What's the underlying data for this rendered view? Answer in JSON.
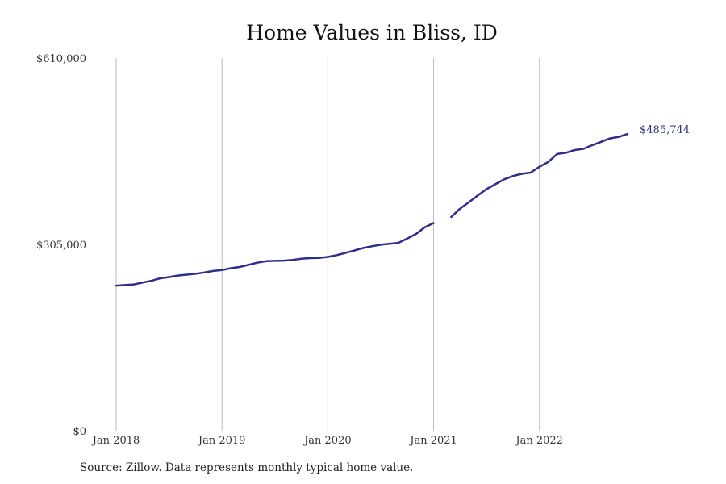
{
  "chart_data": {
    "type": "line",
    "title": "Home Values in Bliss, ID",
    "xlabel": "",
    "ylabel": "",
    "ylim": [
      0,
      610000
    ],
    "y_ticks": [
      {
        "value": 0,
        "label": "$0"
      },
      {
        "value": 305000,
        "label": "$305,000"
      },
      {
        "value": 610000,
        "label": "$610,000"
      }
    ],
    "x_range": [
      "2018-01",
      "2022-10"
    ],
    "x_ticks": [
      {
        "date": "2018-01",
        "label": "Jan 2018"
      },
      {
        "date": "2019-01",
        "label": "Jan 2019"
      },
      {
        "date": "2020-01",
        "label": "Jan 2020"
      },
      {
        "date": "2021-01",
        "label": "Jan 2021"
      },
      {
        "date": "2022-01",
        "label": "Jan 2022"
      }
    ],
    "grid": "vertical",
    "series": [
      {
        "color": "#2e2e8c",
        "end_label": "$485,744",
        "points": [
          {
            "x": "2018-01",
            "y": 237500
          },
          {
            "x": "2018-02",
            "y": 238500
          },
          {
            "x": "2018-03",
            "y": 239500
          },
          {
            "x": "2018-04",
            "y": 242500
          },
          {
            "x": "2018-05",
            "y": 245500
          },
          {
            "x": "2018-06",
            "y": 249500
          },
          {
            "x": "2018-07",
            "y": 251500
          },
          {
            "x": "2018-08",
            "y": 254000
          },
          {
            "x": "2018-09",
            "y": 255500
          },
          {
            "x": "2018-10",
            "y": 257000
          },
          {
            "x": "2018-11",
            "y": 259000
          },
          {
            "x": "2018-12",
            "y": 261500
          },
          {
            "x": "2019-01",
            "y": 263000
          },
          {
            "x": "2019-02",
            "y": 266000
          },
          {
            "x": "2019-03",
            "y": 268000
          },
          {
            "x": "2019-04",
            "y": 271500
          },
          {
            "x": "2019-05",
            "y": 275000
          },
          {
            "x": "2019-06",
            "y": 277500
          },
          {
            "x": "2019-07",
            "y": 278000
          },
          {
            "x": "2019-08",
            "y": 278500
          },
          {
            "x": "2019-09",
            "y": 279500
          },
          {
            "x": "2019-10",
            "y": 281500
          },
          {
            "x": "2019-11",
            "y": 282500
          },
          {
            "x": "2019-12",
            "y": 283000
          },
          {
            "x": "2020-01",
            "y": 284500
          },
          {
            "x": "2020-02",
            "y": 287500
          },
          {
            "x": "2020-03",
            "y": 291000
          },
          {
            "x": "2020-04",
            "y": 295000
          },
          {
            "x": "2020-05",
            "y": 299000
          },
          {
            "x": "2020-06",
            "y": 302000
          },
          {
            "x": "2020-07",
            "y": 304500
          },
          {
            "x": "2020-08",
            "y": 306000
          },
          {
            "x": "2020-09",
            "y": 307500
          },
          {
            "x": "2020-10",
            "y": 314500
          },
          {
            "x": "2020-11",
            "y": 322000
          },
          {
            "x": "2020-12",
            "y": 333000
          },
          {
            "x": "2021-01",
            "y": 340000
          },
          {
            "x": "2021-02",
            "y": null
          },
          {
            "x": "2021-03",
            "y": 350000
          },
          {
            "x": "2021-04",
            "y": 363500
          },
          {
            "x": "2021-05",
            "y": 374000
          },
          {
            "x": "2021-06",
            "y": 385000
          },
          {
            "x": "2021-07",
            "y": 395500
          },
          {
            "x": "2021-08",
            "y": 403500
          },
          {
            "x": "2021-09",
            "y": 411500
          },
          {
            "x": "2021-10",
            "y": 417000
          },
          {
            "x": "2021-11",
            "y": 420500
          },
          {
            "x": "2021-12",
            "y": 422500
          },
          {
            "x": "2022-01",
            "y": 432000
          },
          {
            "x": "2022-02",
            "y": 440000
          },
          {
            "x": "2022-03",
            "y": 453000
          },
          {
            "x": "2022-04",
            "y": 455000
          },
          {
            "x": "2022-05",
            "y": 459500
          },
          {
            "x": "2022-06",
            "y": 461500
          },
          {
            "x": "2022-07",
            "y": 467500
          },
          {
            "x": "2022-08",
            "y": 473000
          },
          {
            "x": "2022-09",
            "y": 478500
          },
          {
            "x": "2022-10",
            "y": 481000
          },
          {
            "x": "2022-11",
            "y": 485744
          }
        ]
      }
    ]
  },
  "source_note": "Source: Zillow. Data represents monthly typical home value."
}
